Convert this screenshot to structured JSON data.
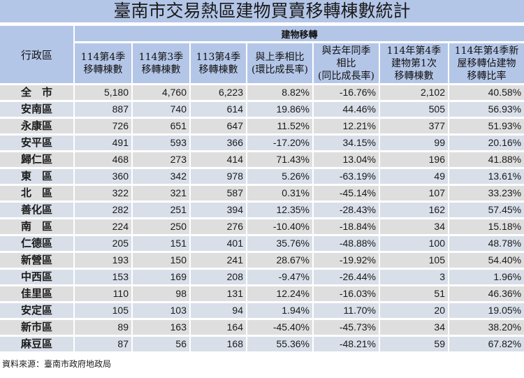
{
  "title": "臺南市交易熱區建物買賣移轉棟數統計",
  "header": {
    "region_label": "行政區",
    "group_label": "建物移轉",
    "columns": [
      "114第4季\n移轉棟數",
      "114第3季\n移轉棟數",
      "113第4季\n移轉棟數",
      "與上季相比\n(環比成長率)",
      "與去年同季\n相比\n(同比成長率)",
      "114年第4季\n建物第1次\n移轉棟數",
      "114年第4季新\n屋移轉佔建物\n移轉比率"
    ]
  },
  "rows": [
    {
      "region": "全　市",
      "q4_114": "5,180",
      "q3_114": "4,760",
      "q4_113": "6,223",
      "qoq": "8.82%",
      "yoy": "-16.76%",
      "first_transfer": "2,102",
      "new_ratio": "40.58%"
    },
    {
      "region": "安南區",
      "q4_114": "887",
      "q3_114": "740",
      "q4_113": "614",
      "qoq": "19.86%",
      "yoy": "44.46%",
      "first_transfer": "505",
      "new_ratio": "56.93%"
    },
    {
      "region": "永康區",
      "q4_114": "726",
      "q3_114": "651",
      "q4_113": "647",
      "qoq": "11.52%",
      "yoy": "12.21%",
      "first_transfer": "377",
      "new_ratio": "51.93%"
    },
    {
      "region": "安平區",
      "q4_114": "491",
      "q3_114": "593",
      "q4_113": "366",
      "qoq": "-17.20%",
      "yoy": "34.15%",
      "first_transfer": "99",
      "new_ratio": "20.16%"
    },
    {
      "region": "歸仁區",
      "q4_114": "468",
      "q3_114": "273",
      "q4_113": "414",
      "qoq": "71.43%",
      "yoy": "13.04%",
      "first_transfer": "196",
      "new_ratio": "41.88%"
    },
    {
      "region": "東　區",
      "q4_114": "360",
      "q3_114": "342",
      "q4_113": "978",
      "qoq": "5.26%",
      "yoy": "-63.19%",
      "first_transfer": "49",
      "new_ratio": "13.61%"
    },
    {
      "region": "北　區",
      "q4_114": "322",
      "q3_114": "321",
      "q4_113": "587",
      "qoq": "0.31%",
      "yoy": "-45.14%",
      "first_transfer": "107",
      "new_ratio": "33.23%"
    },
    {
      "region": "善化區",
      "q4_114": "282",
      "q3_114": "251",
      "q4_113": "394",
      "qoq": "12.35%",
      "yoy": "-28.43%",
      "first_transfer": "162",
      "new_ratio": "57.45%"
    },
    {
      "region": "南　區",
      "q4_114": "224",
      "q3_114": "250",
      "q4_113": "276",
      "qoq": "-10.40%",
      "yoy": "-18.84%",
      "first_transfer": "34",
      "new_ratio": "15.18%"
    },
    {
      "region": "仁德區",
      "q4_114": "205",
      "q3_114": "151",
      "q4_113": "401",
      "qoq": "35.76%",
      "yoy": "-48.88%",
      "first_transfer": "100",
      "new_ratio": "48.78%"
    },
    {
      "region": "新營區",
      "q4_114": "193",
      "q3_114": "150",
      "q4_113": "241",
      "qoq": "28.67%",
      "yoy": "-19.92%",
      "first_transfer": "105",
      "new_ratio": "54.40%"
    },
    {
      "region": "中西區",
      "q4_114": "153",
      "q3_114": "169",
      "q4_113": "208",
      "qoq": "-9.47%",
      "yoy": "-26.44%",
      "first_transfer": "3",
      "new_ratio": "1.96%"
    },
    {
      "region": "佳里區",
      "q4_114": "110",
      "q3_114": "98",
      "q4_113": "131",
      "qoq": "12.24%",
      "yoy": "-16.03%",
      "first_transfer": "51",
      "new_ratio": "46.36%"
    },
    {
      "region": "安定區",
      "q4_114": "105",
      "q3_114": "103",
      "q4_113": "94",
      "qoq": "1.94%",
      "yoy": "11.70%",
      "first_transfer": "20",
      "new_ratio": "19.05%"
    },
    {
      "region": "新市區",
      "q4_114": "89",
      "q3_114": "163",
      "q4_113": "164",
      "qoq": "-45.40%",
      "yoy": "-45.73%",
      "first_transfer": "34",
      "new_ratio": "38.20%"
    },
    {
      "region": "麻豆區",
      "q4_114": "87",
      "q3_114": "56",
      "q4_113": "168",
      "qoq": "55.36%",
      "yoy": "-48.21%",
      "first_transfer": "59",
      "new_ratio": "67.82%"
    }
  ],
  "source": "資料來源：臺南市政府地政局",
  "colors": {
    "header_bg": "#b4c6e7",
    "row_gray": "#dedede",
    "row_blue": "#d8dfe9"
  }
}
